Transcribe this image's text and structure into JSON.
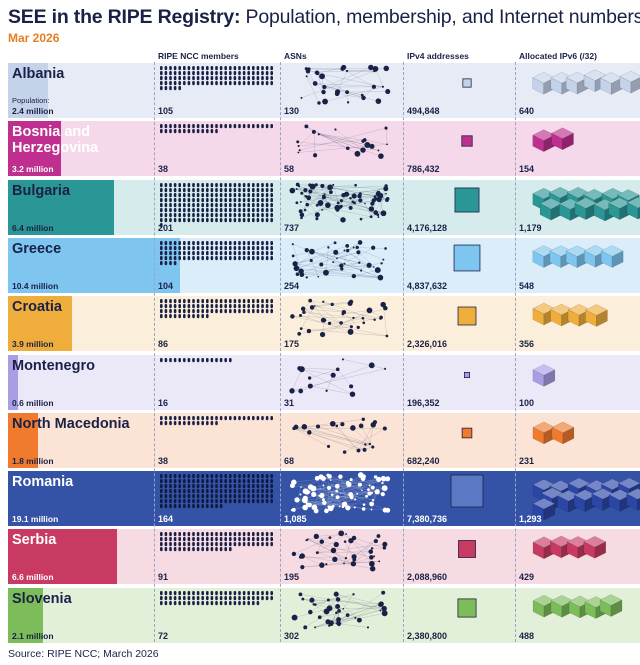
{
  "title_bold": "SEE in the RIPE Registry:",
  "title_rest": " Population, membership, and Internet numbers",
  "subtitle": "Mar 2026",
  "source": "Source: RIPE NCC; March 2026",
  "chart_data": {
    "type": "table",
    "columns": [
      "RIPE NCC members",
      "ASNs",
      "IPv4 addresses",
      "Allocated IPv6 (/32)"
    ],
    "population_label": "Population:",
    "rows": [
      {
        "country": "Albania",
        "population": "2.4 million",
        "pop_millions": 2.4,
        "members": 105,
        "members_label": "105",
        "asns": 130,
        "asns_label": "130",
        "ipv4": 494848,
        "ipv4_label": "494,848",
        "ipv6": 640,
        "ipv6_label": "640",
        "color": "#c5d3ea",
        "bg": "#e7ebf5",
        "dark": false
      },
      {
        "country": "Bosnia and Herzegovina",
        "population": "3.2 million",
        "pop_millions": 3.2,
        "members": 38,
        "members_label": "38",
        "asns": 58,
        "asns_label": "58",
        "ipv4": 786432,
        "ipv4_label": "786,432",
        "ipv6": 154,
        "ipv6_label": "154",
        "color": "#bf2f8f",
        "bg": "#f5d9ea",
        "dark": true
      },
      {
        "country": "Bulgaria",
        "population": "6.4 million",
        "pop_millions": 6.4,
        "members": 201,
        "members_label": "201",
        "asns": 737,
        "asns_label": "737",
        "ipv4": 4176128,
        "ipv4_label": "4,176,128",
        "ipv6": 1179,
        "ipv6_label": "1,179",
        "color": "#2b9696",
        "bg": "#d6ecec",
        "dark": false
      },
      {
        "country": "Greece",
        "population": "10.4 million",
        "pop_millions": 10.4,
        "members": 104,
        "members_label": "104",
        "asns": 254,
        "asns_label": "254",
        "ipv4": 4837632,
        "ipv4_label": "4,837,632",
        "ipv6": 548,
        "ipv6_label": "548",
        "color": "#7ec6f0",
        "bg": "#dcedfa",
        "dark": false
      },
      {
        "country": "Croatia",
        "population": "3.9 million",
        "pop_millions": 3.9,
        "members": 86,
        "members_label": "86",
        "asns": 175,
        "asns_label": "175",
        "ipv4": 2326016,
        "ipv4_label": "2,326,016",
        "ipv6": 356,
        "ipv6_label": "356",
        "color": "#efae3c",
        "bg": "#fbefdb",
        "dark": false
      },
      {
        "country": "Montenegro",
        "population": "0.6 million",
        "pop_millions": 0.6,
        "members": 16,
        "members_label": "16",
        "asns": 31,
        "asns_label": "31",
        "ipv4": 196352,
        "ipv4_label": "196,352",
        "ipv6": 100,
        "ipv6_label": "100",
        "color": "#a99de6",
        "bg": "#ebe8f7",
        "dark": false
      },
      {
        "country": "North Macedonia",
        "population": "1.8 million",
        "pop_millions": 1.8,
        "members": 38,
        "members_label": "38",
        "asns": 68,
        "asns_label": "68",
        "ipv4": 682240,
        "ipv4_label": "682,240",
        "ipv6": 231,
        "ipv6_label": "231",
        "color": "#f07a2e",
        "bg": "#fbe3d5",
        "dark": false
      },
      {
        "country": "Romania",
        "population": "19.1 million",
        "pop_millions": 19.1,
        "members": 164,
        "members_label": "164",
        "asns": 1085,
        "asns_label": "1,085",
        "ipv4": 7380736,
        "ipv4_label": "7,380,736",
        "ipv6": 1293,
        "ipv6_label": "1,293",
        "color": "#3553a6",
        "bg": "#3553a6",
        "dark": true
      },
      {
        "country": "Serbia",
        "population": "6.6 million",
        "pop_millions": 6.6,
        "members": 91,
        "members_label": "91",
        "asns": 195,
        "asns_label": "195",
        "ipv4": 2088960,
        "ipv4_label": "2,088,960",
        "ipv6": 429,
        "ipv6_label": "429",
        "color": "#c93a63",
        "bg": "#f6dbe3",
        "dark": true
      },
      {
        "country": "Slovenia",
        "population": "2.1 million",
        "pop_millions": 2.1,
        "members": 72,
        "members_label": "72",
        "asns": 302,
        "asns_label": "302",
        "ipv4": 2380800,
        "ipv4_label": "2,380,800",
        "ipv6": 488,
        "ipv6_label": "488",
        "color": "#7cbd5a",
        "bg": "#e2f0d9",
        "dark": false
      }
    ]
  }
}
